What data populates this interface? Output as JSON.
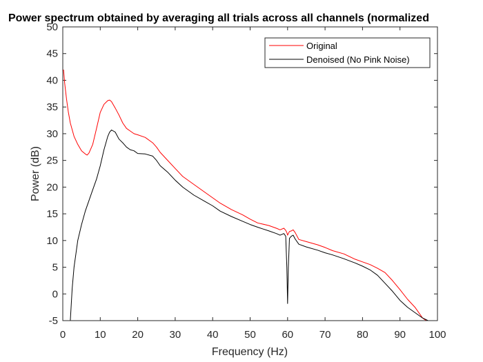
{
  "chart_data": {
    "type": "line",
    "title": "Power spectrum obtained by averaging all trials across all channels (normalized",
    "xlabel": "Frequency (Hz)",
    "ylabel": "Power (dB)",
    "xlim": [
      0,
      100
    ],
    "ylim": [
      -5,
      50
    ],
    "xticks": [
      "0",
      "10",
      "20",
      "30",
      "40",
      "50",
      "60",
      "70",
      "80",
      "90",
      "100"
    ],
    "yticks": [
      "-5",
      "0",
      "5",
      "10",
      "15",
      "20",
      "25",
      "30",
      "35",
      "40",
      "45",
      "50"
    ],
    "grid": false,
    "legend_position": "top-right",
    "series": [
      {
        "name": "Original",
        "color": "#ff0000",
        "x": [
          0.2,
          0.5,
          1,
          1.5,
          2,
          3,
          4,
          5,
          6,
          6.5,
          7,
          8,
          9,
          10,
          11,
          12,
          12.5,
          13,
          14,
          15,
          16,
          17,
          18,
          19,
          20,
          22,
          24,
          25,
          26,
          28,
          30,
          32,
          35,
          38,
          40,
          42,
          45,
          48,
          50,
          52,
          55,
          57,
          58,
          59,
          59.5,
          59.8,
          60,
          60.2,
          60.5,
          61,
          61.5,
          62,
          63,
          65,
          68,
          70,
          72,
          75,
          78,
          80,
          82,
          84,
          86,
          88,
          90,
          92,
          94,
          96,
          98
        ],
        "y": [
          42.0,
          39.5,
          36.5,
          34.0,
          32.0,
          29.5,
          28.0,
          26.8,
          26.2,
          26.0,
          26.4,
          28.0,
          31.0,
          34.0,
          35.5,
          36.2,
          36.3,
          36.0,
          34.8,
          33.5,
          32.0,
          31.0,
          30.5,
          30.0,
          29.8,
          29.3,
          28.3,
          27.5,
          26.5,
          25.0,
          23.5,
          22.0,
          20.5,
          19.0,
          18.0,
          17.0,
          15.8,
          14.8,
          14.0,
          13.3,
          12.8,
          12.3,
          12.0,
          12.3,
          11.9,
          11.5,
          11.0,
          11.3,
          11.7,
          11.8,
          12.0,
          11.5,
          10.2,
          9.8,
          9.2,
          8.7,
          8.1,
          7.5,
          6.5,
          6.0,
          5.5,
          4.8,
          4.0,
          2.5,
          0.8,
          -1.0,
          -2.5,
          -4.5,
          -5.5
        ]
      },
      {
        "name": "Denoised (No Pink Noise)",
        "color": "#000000",
        "x": [
          2,
          2.5,
          3,
          3.5,
          4,
          5,
          6,
          7,
          8,
          9,
          10,
          11,
          12,
          12.5,
          13,
          14,
          15,
          16,
          17,
          18,
          19,
          20,
          22,
          24,
          25,
          26,
          28,
          30,
          32,
          35,
          38,
          40,
          42,
          45,
          48,
          50,
          52,
          55,
          57,
          58,
          59,
          59.5,
          59.8,
          60,
          60.2,
          60.5,
          61,
          61.5,
          62,
          63,
          65,
          68,
          70,
          72,
          75,
          78,
          80,
          82,
          84,
          86,
          88,
          90,
          92,
          94,
          96,
          97.5
        ],
        "y": [
          -5.0,
          1.0,
          5.0,
          7.5,
          10.0,
          13.0,
          15.5,
          17.5,
          19.5,
          21.5,
          24.0,
          27.0,
          29.5,
          30.3,
          30.7,
          30.3,
          29.0,
          28.3,
          27.5,
          27.0,
          26.8,
          26.3,
          26.2,
          25.8,
          25.0,
          24.0,
          22.8,
          21.3,
          20.0,
          18.5,
          17.3,
          16.5,
          15.5,
          14.5,
          13.6,
          13.0,
          12.5,
          11.8,
          11.3,
          11.0,
          11.3,
          10.8,
          5.0,
          -1.8,
          5.0,
          10.4,
          10.8,
          11.0,
          10.3,
          9.3,
          8.8,
          8.2,
          7.7,
          7.3,
          6.6,
          5.8,
          5.2,
          4.5,
          3.5,
          2.0,
          0.5,
          -1.2,
          -2.5,
          -3.5,
          -4.5,
          -5.0
        ]
      }
    ]
  }
}
